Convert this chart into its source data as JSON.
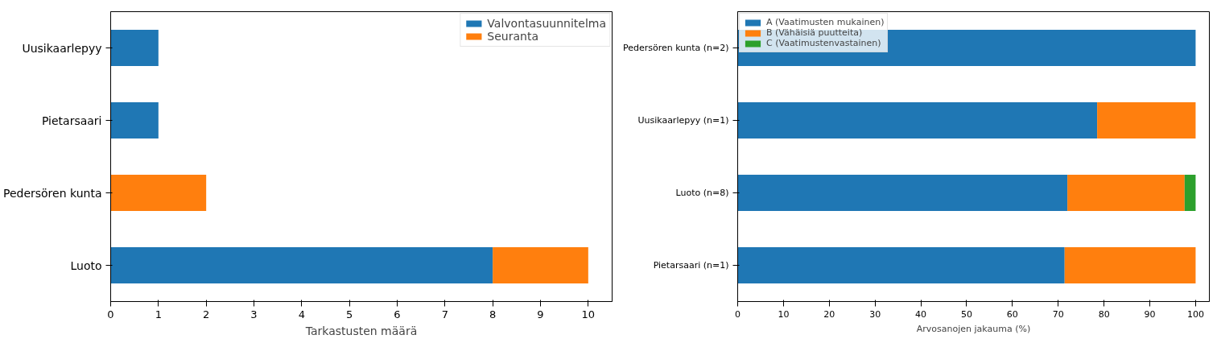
{
  "chart_data": [
    {
      "type": "bar",
      "orientation": "horizontal",
      "stacked": true,
      "categories": [
        "Uusikaarlepyy",
        "Pietarsaari",
        "Pedersören kunta",
        "Luoto"
      ],
      "xlabel": "Tarkastusten määrä",
      "xlim": [
        0,
        10.5
      ],
      "xticks": [
        0,
        1,
        2,
        3,
        4,
        5,
        6,
        7,
        8,
        9,
        10
      ],
      "grid": false,
      "legend": "top right",
      "series": [
        {
          "name": "Valvontasuunnitelma",
          "color": "#1f77b4",
          "values": [
            1,
            1,
            0,
            8
          ]
        },
        {
          "name": "Seuranta",
          "color": "#ff7f0e",
          "values": [
            0,
            0,
            2,
            2
          ]
        }
      ]
    },
    {
      "type": "bar",
      "orientation": "horizontal",
      "stacked": true,
      "categories": [
        "Pedersören kunta (n=2)",
        "Uusikaarlepyy (n=1)",
        "Luoto (n=8)",
        "Pietarsaari (n=1)"
      ],
      "xlabel": "Arvosanojen jakauma (%)",
      "xlim": [
        0,
        103
      ],
      "xticks": [
        0,
        10,
        20,
        30,
        40,
        50,
        60,
        70,
        80,
        90,
        100
      ],
      "grid": false,
      "legend": "top left",
      "series": [
        {
          "name": "A (Vaatimusten mukainen)",
          "color": "#1f77b4",
          "values": [
            100,
            78.5,
            72,
            71.4
          ]
        },
        {
          "name": "B (Vähäisiä puutteita)",
          "color": "#ff7f0e",
          "values": [
            0,
            21.5,
            25.6,
            28.6
          ]
        },
        {
          "name": "C (Vaatimustenvastainen)",
          "color": "#2ca02c",
          "values": [
            0,
            0,
            2.4,
            0
          ]
        }
      ]
    }
  ]
}
